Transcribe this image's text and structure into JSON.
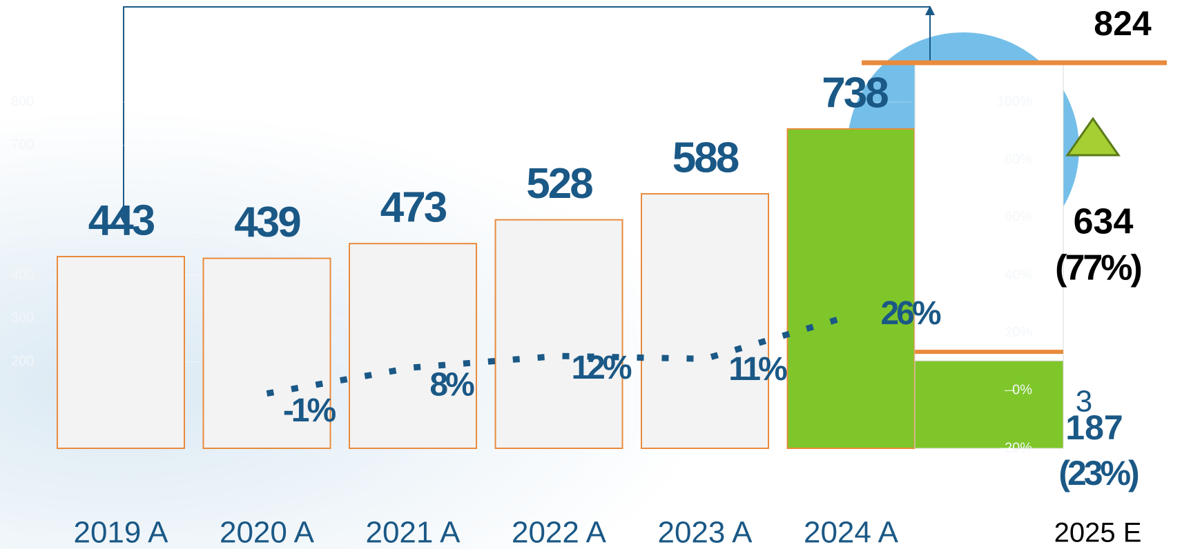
{
  "chart_data": {
    "type": "bar",
    "categories": [
      "2019 A",
      "2020 A",
      "2021 A",
      "2022 A",
      "2023 A",
      "2024 A"
    ],
    "values": [
      443,
      439,
      473,
      528,
      588,
      738
    ],
    "color": "#f3f3f3",
    "highlight_color": "#7ec62a",
    "border_color": "#e98a3c",
    "ylim": [
      0,
      800
    ],
    "yticks": [
      200,
      300,
      400,
      500,
      700,
      800
    ],
    "growth": {
      "values": [
        null,
        -1,
        8,
        12,
        11,
        26
      ],
      "value_labels": [
        null,
        "-1%",
        "8%",
        "12%",
        "11%",
        "26%"
      ],
      "axis": "y2",
      "color": "#1a5886"
    },
    "y2lim": [
      -20,
      100
    ],
    "y2ticks": [
      {
        "value": -20,
        "label": "-20%"
      },
      {
        "value": 0,
        "label": "0%"
      },
      {
        "value": 20,
        "label": "20%"
      },
      {
        "value": 40,
        "label": "40%"
      },
      {
        "value": 60,
        "label": "60%"
      },
      {
        "value": 80,
        "label": "80%"
      },
      {
        "value": 100,
        "label": "100%"
      }
    ],
    "forecast": {
      "category": "2025 E",
      "total": 824,
      "values": [
        634,
        187
      ],
      "shares": [
        77,
        23
      ],
      "share_labels": [
        "(77%)",
        "(23%)"
      ],
      "colors": [
        "#ffffff",
        "#7ec62a"
      ]
    },
    "annotations": [
      "3"
    ]
  }
}
